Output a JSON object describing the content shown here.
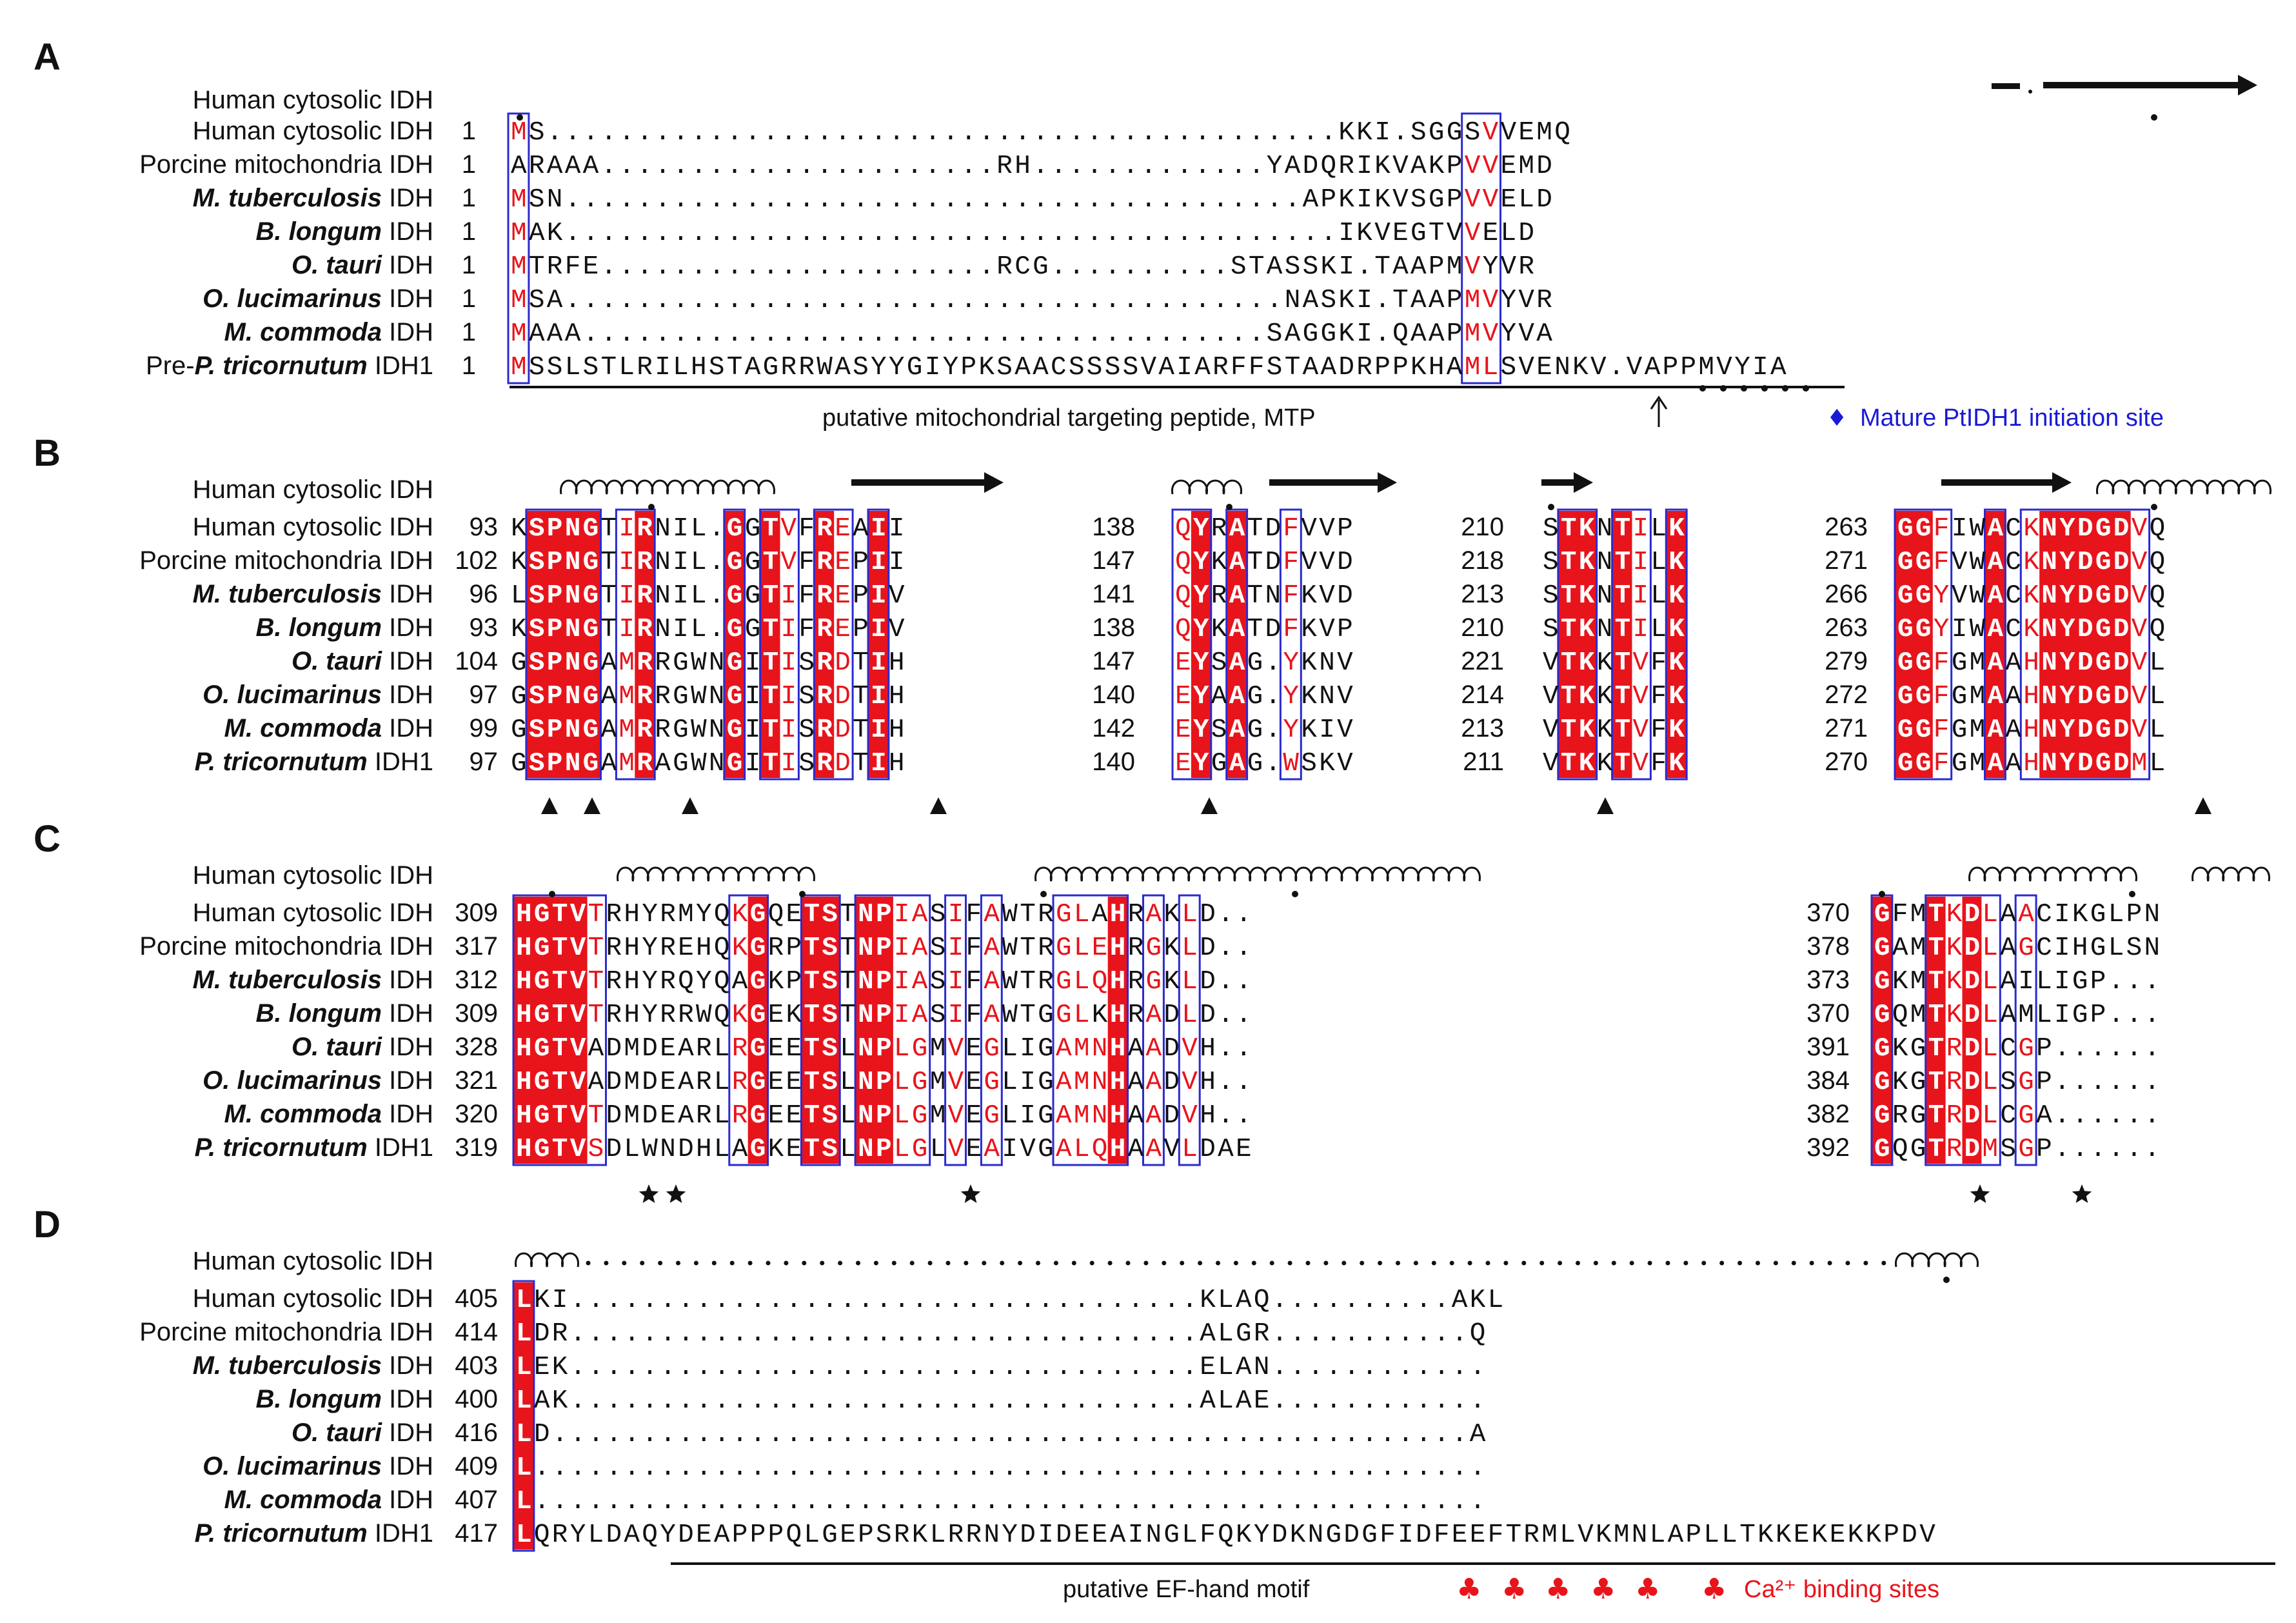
{
  "colors": {
    "identical_bg": "#e8141b",
    "similar_text": "#e8141b",
    "box": "#2a2ad0",
    "text": "#111111",
    "blue": "#1a1ad6"
  },
  "panels": [
    {
      "label": "A",
      "header": "Human cytosolic IDH",
      "species": [
        {
          "pre": "",
          "it": "",
          "post": "Human cytosolic IDH"
        },
        {
          "pre": "",
          "it": "",
          "post": "Porcine mitochondria IDH"
        },
        {
          "pre": "",
          "it": "M. tuberculosis",
          "post": " IDH"
        },
        {
          "pre": "",
          "it": "B. longum",
          "post": " IDH"
        },
        {
          "pre": "",
          "it": "O. tauri",
          "post": " IDH"
        },
        {
          "pre": "",
          "it": "O. lucimarinus",
          "post": " IDH"
        },
        {
          "pre": "",
          "it": "M. commoda",
          "post": " IDH"
        },
        {
          "pre": "Pre-",
          "it": "P. tricornutum",
          "post": " IDH1"
        }
      ],
      "blocks": [
        {
          "numbers": [
            "1",
            "1",
            "1",
            "1",
            "1",
            "1",
            "1",
            "1"
          ],
          "rows": [
            "MS............................................KKI.SGGSVVEMQ",
            "ARAAA......................RH.............YADQRIKVAKPVVEMD",
            "MSN.........................................APKIKVSGPVVELD",
            "MAK...........................................IKVEGTVVELD",
            "MTRFE......................RCG..........STASSKI.TAAPMVYVR",
            "MSA........................................NASKI.TAAPMVYVR",
            "MAAA......................................SAGGKI.QAAPMVYVA",
            "MSSLSTLRILHSTAGRRWASYYGIYPKSAACSSSSVAIARFFSTAADRPPKHAMLSVENKV.VAPPMVYIA"
          ]
        }
      ],
      "annotations": [
        {
          "type": "text",
          "text": "putative mitochondrial targeting peptide, MTP"
        },
        {
          "type": "text-blue",
          "text": "Mature PtIDH1 initiation site"
        },
        {
          "type": "symbol",
          "text": "♦"
        }
      ]
    },
    {
      "label": "B",
      "header": "Human cytosolic IDH",
      "species": [
        {
          "pre": "",
          "it": "",
          "post": "Human cytosolic IDH"
        },
        {
          "pre": "",
          "it": "",
          "post": "Porcine mitochondria IDH"
        },
        {
          "pre": "",
          "it": "M. tuberculosis",
          "post": " IDH"
        },
        {
          "pre": "",
          "it": "B. longum",
          "post": " IDH"
        },
        {
          "pre": "",
          "it": "O. tauri",
          "post": " IDH"
        },
        {
          "pre": "",
          "it": "O. lucimarinus",
          "post": " IDH"
        },
        {
          "pre": "",
          "it": "M. commoda",
          "post": " IDH"
        },
        {
          "pre": "",
          "it": "P. tricornutum",
          "post": " IDH1"
        }
      ],
      "blocks": [
        {
          "numbers": [
            "93",
            "102",
            "96",
            "93",
            "104",
            "97",
            "99",
            "97"
          ],
          "rows": [
            "KSPNGTIRNIL.GGTVFREAII",
            "KSPNGTIRNIL.GGTVFREPII",
            "LSPNGTIRNIL.GGTIFREPIV",
            "KSPNGTIRNIL.GGTIFREPIV",
            "GSPNGAMRRGWNGITISRDTIH",
            "GSPNGAMRRGWNGITISRDTIH",
            "GSPNGAMRRGWNGITISRDTIH",
            "GSPNGAMRAGWNGITISRDTIH"
          ]
        },
        {
          "numbers": [
            "138",
            "147",
            "141",
            "138",
            "147",
            "140",
            "142",
            "140"
          ],
          "rows": [
            "QYRATDFVVP",
            "QYKATDFVVD",
            "QYRATNFKVD",
            "QYKATDFKVP",
            "EYSAG.YKNV",
            "EYAAG.YKNV",
            "EYSAG.YKIV",
            "EYGAG.WSKV"
          ]
        },
        {
          "numbers": [
            "210",
            "218",
            "213",
            "210",
            "221",
            "214",
            "213",
            "211"
          ],
          "rows": [
            "STKNTILK",
            "STKNTILK",
            "STKNTILK",
            "STKNTILK",
            "VTKKTVFK",
            "VTKKTVFK",
            "VTKKTVFK",
            "VTKKTVFK"
          ]
        },
        {
          "numbers": [
            "263",
            "271",
            "266",
            "263",
            "279",
            "272",
            "271",
            "270"
          ],
          "rows": [
            "GGFIWACKNYDGDVQ",
            "GGFVWACKNYDGDVQ",
            "GGYVWACKNYDGDVQ",
            "GGYIWACKNYDGDVQ",
            "GGFGMAAHNYDGDVL",
            "GGFGMAAHNYDGDVL",
            "GGFGMAAHNYDGDVL",
            "GGFGMAAHNYDGDML"
          ]
        }
      ]
    },
    {
      "label": "C",
      "header": "Human cytosolic IDH",
      "species": [
        {
          "pre": "",
          "it": "",
          "post": "Human cytosolic IDH"
        },
        {
          "pre": "",
          "it": "",
          "post": "Porcine mitochondria IDH"
        },
        {
          "pre": "",
          "it": "M. tuberculosis",
          "post": " IDH"
        },
        {
          "pre": "",
          "it": "B. longum",
          "post": " IDH"
        },
        {
          "pre": "",
          "it": "O. tauri",
          "post": " IDH"
        },
        {
          "pre": "",
          "it": "O. lucimarinus",
          "post": " IDH"
        },
        {
          "pre": "",
          "it": "M. commoda",
          "post": " IDH"
        },
        {
          "pre": "",
          "it": "P. tricornutum",
          "post": " IDH1"
        }
      ],
      "blocks": [
        {
          "numbers": [
            "309",
            "317",
            "312",
            "309",
            "328",
            "321",
            "320",
            "319"
          ],
          "rows": [
            "HGTVTRHYRMYQKGQETSTNPIASIFAWTRGLAHRAKLD..",
            "HGTVTRHYREHQKGRPTSTNPIASIFAWTRGLEHRGKLD..",
            "HGTVTRHYRQYQAGKPTSTNPIASIFAWTRGLQHRGKLD..",
            "HGTVTRHYRRWQKGEKTSTNPIASIFAWTGGLKHRADLD..",
            "HGTVADMDEARLRGEETSLNPLGMVEGLIGAMNHAADVH..",
            "HGTVADMDEARLRGEETSLNPLGMVEGLIGAMNHAADVH..",
            "HGTVTDMDEARLRGEETSLNPLGMVEGLIGAMNHAADVH..",
            "HGTVSDLWNDHLAGKETSLNPLGLVEAIVGALQHAAVLDAE"
          ]
        },
        {
          "numbers": [
            "370",
            "378",
            "373",
            "370",
            "391",
            "384",
            "382",
            "392"
          ],
          "rows": [
            "GFMTKDLAACIKGLPN",
            "GAMTKDLAGCIHGLSN",
            "GKMTKDLAILIGP...",
            "GQMTKDLAMLIGP...",
            "GKGTRDLCGP......",
            "GKGTRDLSGP......",
            "GRGTRDLCGA......",
            "GQGTRDMSGP......"
          ]
        }
      ]
    },
    {
      "label": "D",
      "header": "Human cytosolic IDH",
      "species": [
        {
          "pre": "",
          "it": "",
          "post": "Human cytosolic IDH"
        },
        {
          "pre": "",
          "it": "",
          "post": "Porcine mitochondria IDH"
        },
        {
          "pre": "",
          "it": "M. tuberculosis",
          "post": " IDH"
        },
        {
          "pre": "",
          "it": "B. longum",
          "post": " IDH"
        },
        {
          "pre": "",
          "it": "O. tauri",
          "post": " IDH"
        },
        {
          "pre": "",
          "it": "O. lucimarinus",
          "post": " IDH"
        },
        {
          "pre": "",
          "it": "M. commoda",
          "post": " IDH"
        },
        {
          "pre": "",
          "it": "P. tricornutum",
          "post": " IDH1"
        }
      ],
      "blocks": [
        {
          "numbers": [
            "405",
            "414",
            "403",
            "400",
            "416",
            "409",
            "407",
            "417"
          ],
          "rows": [
            "LKI...................................KLAQ..........AKL",
            "LDR...................................ALGR...........Q",
            "LEK...................................ELAN............",
            "LAK...................................ALAE............",
            "LD...................................................A",
            "L.....................................................",
            "L.....................................................",
            "LQRYLDAQYDEAPPPQLGEPSRKLRRNYDIDEEAINGLFQKYDKNGDGFIDFEEFTRMLVKMNLAPLLTKKEKEKKPDV"
          ]
        }
      ],
      "annotations": [
        {
          "type": "text",
          "text": "putative EF-hand motif"
        },
        {
          "type": "text-red",
          "text": "Ca²⁺ binding sites"
        },
        {
          "type": "symbol",
          "text": "♣"
        }
      ]
    }
  ]
}
